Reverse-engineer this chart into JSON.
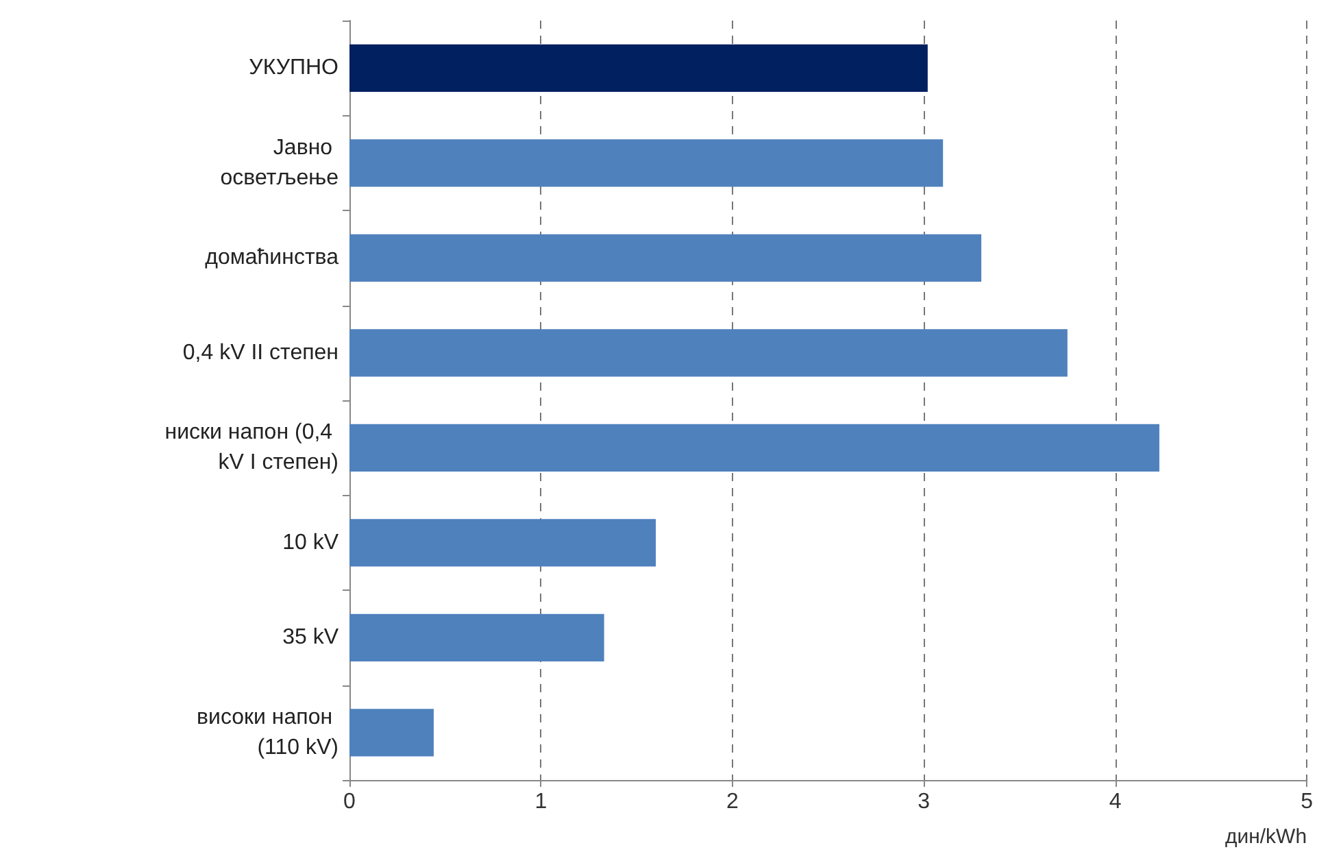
{
  "chart_data": {
    "type": "bar",
    "orientation": "horizontal",
    "categories": [
      "УКУПНО",
      "Јавно осветљење",
      "домаћинства",
      "0,4 kV II степен",
      "ниски напон (0,4 kV I степен)",
      "10 kV",
      "35 kV",
      "високи напон (110 kV)"
    ],
    "values": [
      3.02,
      3.1,
      3.3,
      3.75,
      4.23,
      1.6,
      1.33,
      0.44
    ],
    "colors": [
      "#002060",
      "#4f81bd",
      "#4f81bd",
      "#4f81bd",
      "#4f81bd",
      "#4f81bd",
      "#4f81bd",
      "#4f81bd"
    ],
    "xlabel": "дин/kWh",
    "xlim": [
      0,
      5
    ],
    "xticks": [
      0,
      1,
      2,
      3,
      4,
      5
    ],
    "grid": "x"
  }
}
